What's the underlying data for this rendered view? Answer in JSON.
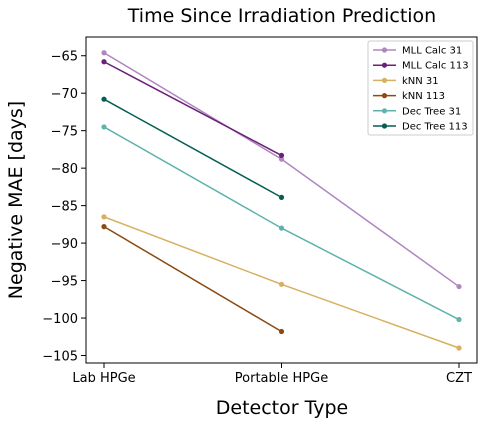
{
  "chart_data": {
    "type": "line",
    "title": "Time Since Irradiation Prediction",
    "xlabel": "Detector Type",
    "ylabel": "Negative MAE [days]",
    "categories": [
      "Lab HPGe",
      "Portable HPGe",
      "CZT"
    ],
    "ylim": [
      -106,
      -62.5
    ],
    "yticks": [
      -65,
      -70,
      -75,
      -80,
      -85,
      -90,
      -95,
      -100,
      -105
    ],
    "grid": false,
    "legend_position": "top-right",
    "series": [
      {
        "name": "MLL Calc 31",
        "color": "#b085c0",
        "values": [
          -64.6,
          -78.8,
          -95.8
        ]
      },
      {
        "name": "MLL Calc 113",
        "color": "#6a2277",
        "values": [
          -65.8,
          -78.3,
          null
        ]
      },
      {
        "name": "kNN 31",
        "color": "#d8b060",
        "values": [
          -86.5,
          -95.5,
          -104.0
        ]
      },
      {
        "name": "kNN 113",
        "color": "#8a4a10",
        "values": [
          -87.8,
          -101.8,
          null
        ]
      },
      {
        "name": "Dec Tree 31",
        "color": "#5fb3ab",
        "values": [
          -74.5,
          -88.0,
          -100.2
        ]
      },
      {
        "name": "Dec Tree 113",
        "color": "#045f52",
        "values": [
          -70.8,
          -83.9,
          null
        ]
      }
    ]
  }
}
